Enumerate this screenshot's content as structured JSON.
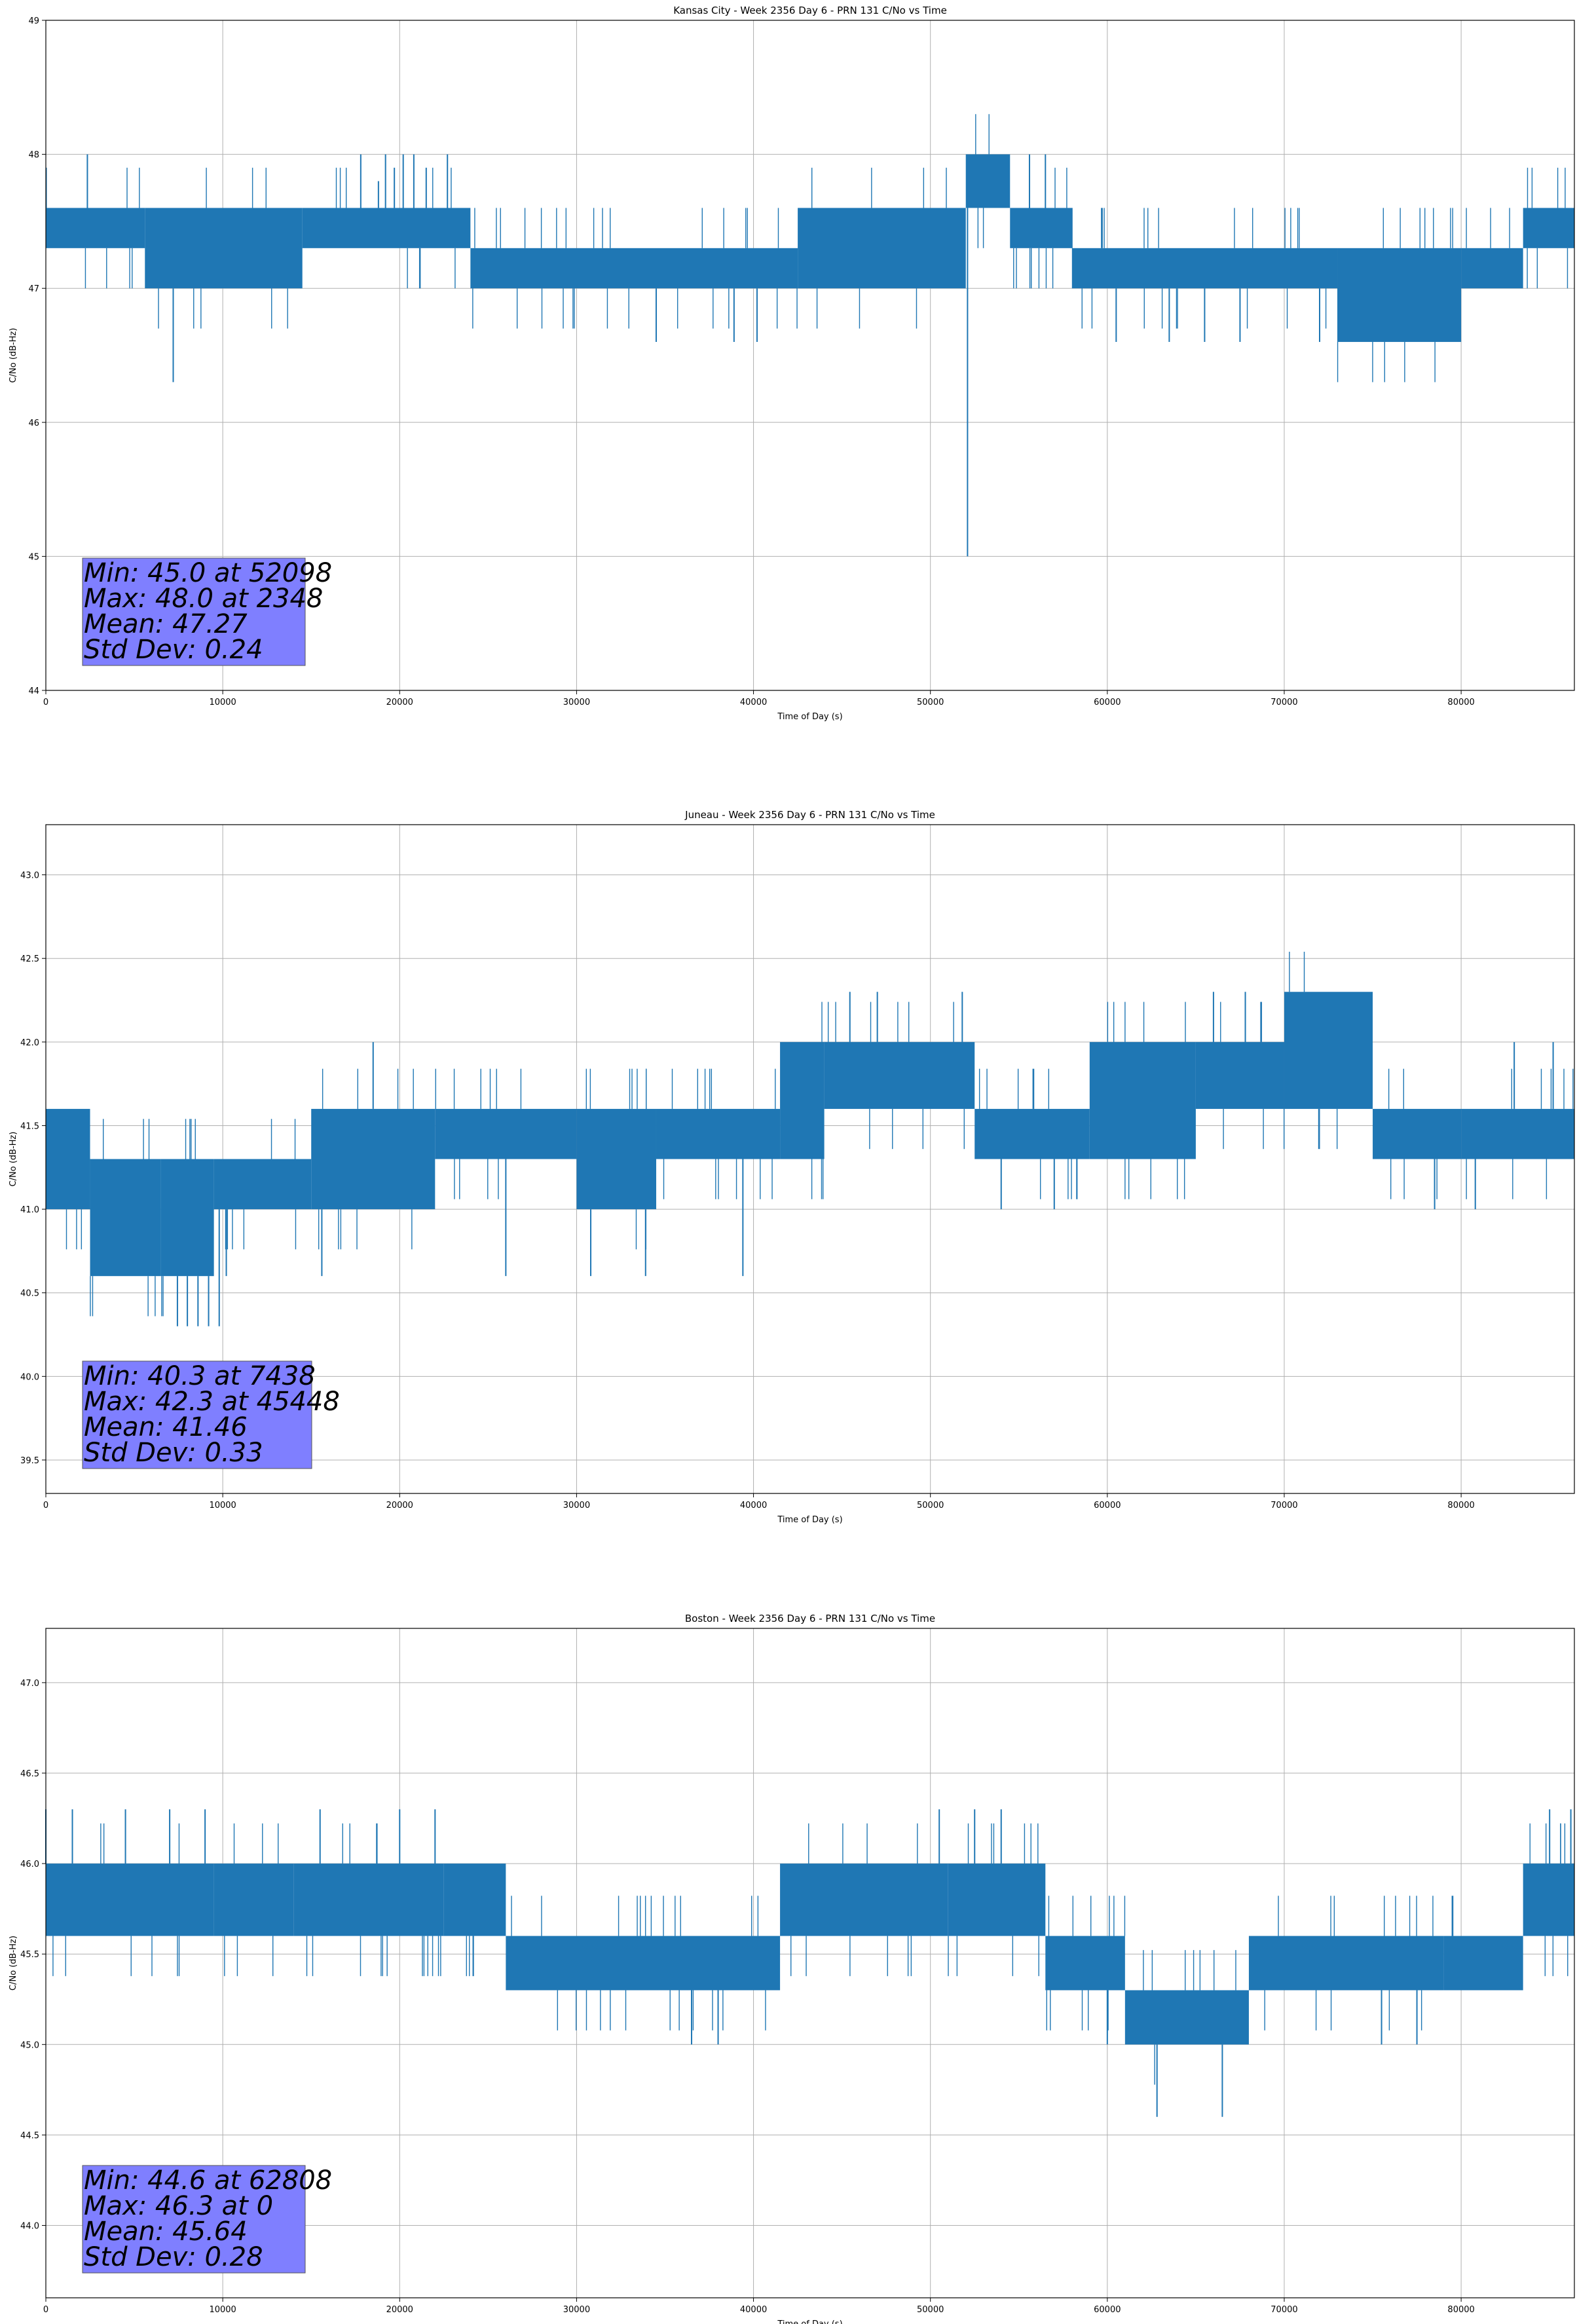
{
  "chart_data": [
    {
      "type": "line",
      "title": "Kansas City - Week 2356 Day 6 - PRN 131 C/No vs Time",
      "xlabel": "Time of Day (s)",
      "ylabel": "C/No (dB-Hz)",
      "xlim": [
        0,
        86400
      ],
      "ylim": [
        44,
        49
      ],
      "x_ticks": [
        0,
        10000,
        20000,
        30000,
        40000,
        50000,
        60000,
        70000,
        80000
      ],
      "y_ticks": [
        44,
        45,
        46,
        47,
        48,
        49
      ],
      "y_tick_labels": [
        "44",
        "45",
        "46",
        "47",
        "48",
        "49"
      ],
      "grid": true,
      "color": "#1f77b4",
      "series": [
        {
          "name": "C/No",
          "segments": [
            {
              "x": [
                0,
                5600
              ],
              "low": 47.3,
              "high": 47.6
            },
            {
              "x": [
                5600,
                14500
              ],
              "low": 47.0,
              "high": 47.6
            },
            {
              "x": [
                14500,
                24000
              ],
              "low": 47.3,
              "high": 47.6
            },
            {
              "x": [
                24000,
                42500
              ],
              "low": 47.0,
              "high": 47.3
            },
            {
              "x": [
                42500,
                52000
              ],
              "low": 47.0,
              "high": 47.6
            },
            {
              "x": [
                52000,
                54500
              ],
              "low": 47.6,
              "high": 48.0
            },
            {
              "x": [
                54500,
                58000
              ],
              "low": 47.3,
              "high": 47.6
            },
            {
              "x": [
                58000,
                73000
              ],
              "low": 47.0,
              "high": 47.3
            },
            {
              "x": [
                73000,
                80000
              ],
              "low": 46.6,
              "high": 47.3
            },
            {
              "x": [
                80000,
                83500
              ],
              "low": 47.0,
              "high": 47.3
            },
            {
              "x": [
                83500,
                86400
              ],
              "low": 47.3,
              "high": 47.6
            }
          ],
          "spikes": [
            {
              "x": 2348,
              "y": 48.0
            },
            {
              "x": 7200,
              "y": 46.3
            },
            {
              "x": 17800,
              "y": 48.0
            },
            {
              "x": 18800,
              "y": 47.8
            },
            {
              "x": 19200,
              "y": 48.0
            },
            {
              "x": 19700,
              "y": 47.9
            },
            {
              "x": 20200,
              "y": 48.0
            },
            {
              "x": 20800,
              "y": 48.0
            },
            {
              "x": 21500,
              "y": 47.9
            },
            {
              "x": 22700,
              "y": 48.0
            },
            {
              "x": 34500,
              "y": 46.6
            },
            {
              "x": 38900,
              "y": 46.6
            },
            {
              "x": 40200,
              "y": 46.6
            },
            {
              "x": 52098,
              "y": 45.0
            },
            {
              "x": 55600,
              "y": 48.0
            },
            {
              "x": 56500,
              "y": 48.0
            },
            {
              "x": 60500,
              "y": 46.6
            },
            {
              "x": 63500,
              "y": 46.6
            },
            {
              "x": 65500,
              "y": 46.6
            },
            {
              "x": 67500,
              "y": 46.6
            },
            {
              "x": 72000,
              "y": 46.6
            },
            {
              "x": 75500,
              "y": 46.6
            }
          ]
        }
      ],
      "stats": [
        "Min: 45.0 at 52098",
        "Max: 48.0 at 2348",
        "Mean: 47.27",
        "Std Dev: 0.24"
      ]
    },
    {
      "type": "line",
      "title": "Juneau - Week 2356 Day 6 - PRN 131 C/No vs Time",
      "xlabel": "Time of Day (s)",
      "ylabel": "C/No (dB-Hz)",
      "xlim": [
        0,
        86400
      ],
      "ylim": [
        39.3,
        43.3
      ],
      "x_ticks": [
        0,
        10000,
        20000,
        30000,
        40000,
        50000,
        60000,
        70000,
        80000
      ],
      "y_ticks": [
        39.5,
        40.0,
        40.5,
        41.0,
        41.5,
        42.0,
        42.5,
        43.0
      ],
      "y_tick_labels": [
        "39.5",
        "40.0",
        "40.5",
        "41.0",
        "41.5",
        "42.0",
        "42.5",
        "43.0"
      ],
      "grid": true,
      "color": "#1f77b4",
      "series": [
        {
          "name": "C/No",
          "segments": [
            {
              "x": [
                0,
                2500
              ],
              "low": 41.0,
              "high": 41.6
            },
            {
              "x": [
                2500,
                6500
              ],
              "low": 40.6,
              "high": 41.3
            },
            {
              "x": [
                6500,
                9500
              ],
              "low": 40.6,
              "high": 41.3
            },
            {
              "x": [
                9500,
                15000
              ],
              "low": 41.0,
              "high": 41.3
            },
            {
              "x": [
                15000,
                22000
              ],
              "low": 41.0,
              "high": 41.6
            },
            {
              "x": [
                22000,
                30000
              ],
              "low": 41.3,
              "high": 41.6
            },
            {
              "x": [
                30000,
                34500
              ],
              "low": 41.0,
              "high": 41.6
            },
            {
              "x": [
                34500,
                41500
              ],
              "low": 41.3,
              "high": 41.6
            },
            {
              "x": [
                41500,
                44000
              ],
              "low": 41.3,
              "high": 42.0
            },
            {
              "x": [
                44000,
                52500
              ],
              "low": 41.6,
              "high": 42.0
            },
            {
              "x": [
                52500,
                59000
              ],
              "low": 41.3,
              "high": 41.6
            },
            {
              "x": [
                59000,
                65000
              ],
              "low": 41.3,
              "high": 42.0
            },
            {
              "x": [
                65000,
                70000
              ],
              "low": 41.6,
              "high": 42.0
            },
            {
              "x": [
                70000,
                75000
              ],
              "low": 41.6,
              "high": 42.3
            },
            {
              "x": [
                75000,
                80000
              ],
              "low": 41.3,
              "high": 41.6
            },
            {
              "x": [
                80000,
                86400
              ],
              "low": 41.3,
              "high": 41.6
            }
          ],
          "spikes": [
            {
              "x": 7438,
              "y": 40.3
            },
            {
              "x": 8000,
              "y": 40.3
            },
            {
              "x": 8600,
              "y": 40.3
            },
            {
              "x": 9200,
              "y": 40.3
            },
            {
              "x": 9800,
              "y": 40.3
            },
            {
              "x": 10200,
              "y": 40.6
            },
            {
              "x": 15600,
              "y": 40.6
            },
            {
              "x": 18500,
              "y": 42.0
            },
            {
              "x": 26000,
              "y": 40.6
            },
            {
              "x": 30800,
              "y": 40.6
            },
            {
              "x": 33900,
              "y": 40.6
            },
            {
              "x": 39400,
              "y": 40.6
            },
            {
              "x": 45448,
              "y": 42.3
            },
            {
              "x": 47000,
              "y": 42.3
            },
            {
              "x": 51800,
              "y": 42.3
            },
            {
              "x": 54000,
              "y": 41.0
            },
            {
              "x": 57000,
              "y": 41.0
            },
            {
              "x": 66000,
              "y": 42.3
            },
            {
              "x": 67800,
              "y": 42.3
            },
            {
              "x": 78500,
              "y": 41.0
            },
            {
              "x": 80800,
              "y": 41.0
            },
            {
              "x": 83000,
              "y": 42.0
            },
            {
              "x": 85200,
              "y": 42.0
            }
          ]
        }
      ],
      "stats": [
        "Min: 40.3 at 7438",
        "Max: 42.3 at 45448",
        "Mean: 41.46",
        "Std Dev: 0.33"
      ]
    },
    {
      "type": "line",
      "title": "Boston - Week 2356 Day 6 - PRN 131 C/No vs Time",
      "xlabel": "Time of Day (s)",
      "ylabel": "C/No (dB-Hz)",
      "xlim": [
        0,
        86400
      ],
      "ylim": [
        43.6,
        47.3
      ],
      "x_ticks": [
        0,
        10000,
        20000,
        30000,
        40000,
        50000,
        60000,
        70000,
        80000
      ],
      "y_ticks": [
        44.0,
        44.5,
        45.0,
        45.5,
        46.0,
        46.5,
        47.0
      ],
      "y_tick_labels": [
        "44.0",
        "44.5",
        "45.0",
        "45.5",
        "46.0",
        "46.5",
        "47.0"
      ],
      "grid": true,
      "color": "#1f77b4",
      "series": [
        {
          "name": "C/No",
          "segments": [
            {
              "x": [
                0,
                9500
              ],
              "low": 45.6,
              "high": 46.0
            },
            {
              "x": [
                9500,
                14000
              ],
              "low": 45.6,
              "high": 46.0
            },
            {
              "x": [
                14000,
                22500
              ],
              "low": 45.6,
              "high": 46.0
            },
            {
              "x": [
                22500,
                26000
              ],
              "low": 45.6,
              "high": 46.0
            },
            {
              "x": [
                26000,
                41500
              ],
              "low": 45.3,
              "high": 45.6
            },
            {
              "x": [
                41500,
                51000
              ],
              "low": 45.6,
              "high": 46.0
            },
            {
              "x": [
                51000,
                56500
              ],
              "low": 45.6,
              "high": 46.0
            },
            {
              "x": [
                56500,
                61000
              ],
              "low": 45.3,
              "high": 45.6
            },
            {
              "x": [
                61000,
                68000
              ],
              "low": 45.0,
              "high": 45.3
            },
            {
              "x": [
                68000,
                79000
              ],
              "low": 45.3,
              "high": 45.6
            },
            {
              "x": [
                79000,
                83500
              ],
              "low": 45.3,
              "high": 45.6
            },
            {
              "x": [
                83500,
                86400
              ],
              "low": 45.6,
              "high": 46.0
            }
          ],
          "spikes": [
            {
              "x": 0,
              "y": 46.3
            },
            {
              "x": 1500,
              "y": 46.3
            },
            {
              "x": 4500,
              "y": 46.3
            },
            {
              "x": 7000,
              "y": 46.3
            },
            {
              "x": 9000,
              "y": 46.3
            },
            {
              "x": 15500,
              "y": 46.3
            },
            {
              "x": 20000,
              "y": 46.3
            },
            {
              "x": 22000,
              "y": 46.3
            },
            {
              "x": 36500,
              "y": 45.0
            },
            {
              "x": 38000,
              "y": 45.0
            },
            {
              "x": 50500,
              "y": 46.3
            },
            {
              "x": 52500,
              "y": 46.3
            },
            {
              "x": 54000,
              "y": 46.3
            },
            {
              "x": 60000,
              "y": 45.0
            },
            {
              "x": 62808,
              "y": 44.6
            },
            {
              "x": 66500,
              "y": 44.6
            },
            {
              "x": 75500,
              "y": 45.0
            },
            {
              "x": 77500,
              "y": 45.0
            },
            {
              "x": 85000,
              "y": 46.3
            },
            {
              "x": 86200,
              "y": 46.3
            }
          ]
        }
      ],
      "stats": [
        "Min: 44.6 at 62808",
        "Max: 46.3 at 0",
        "Mean: 45.64",
        "Std Dev: 0.28"
      ]
    }
  ]
}
